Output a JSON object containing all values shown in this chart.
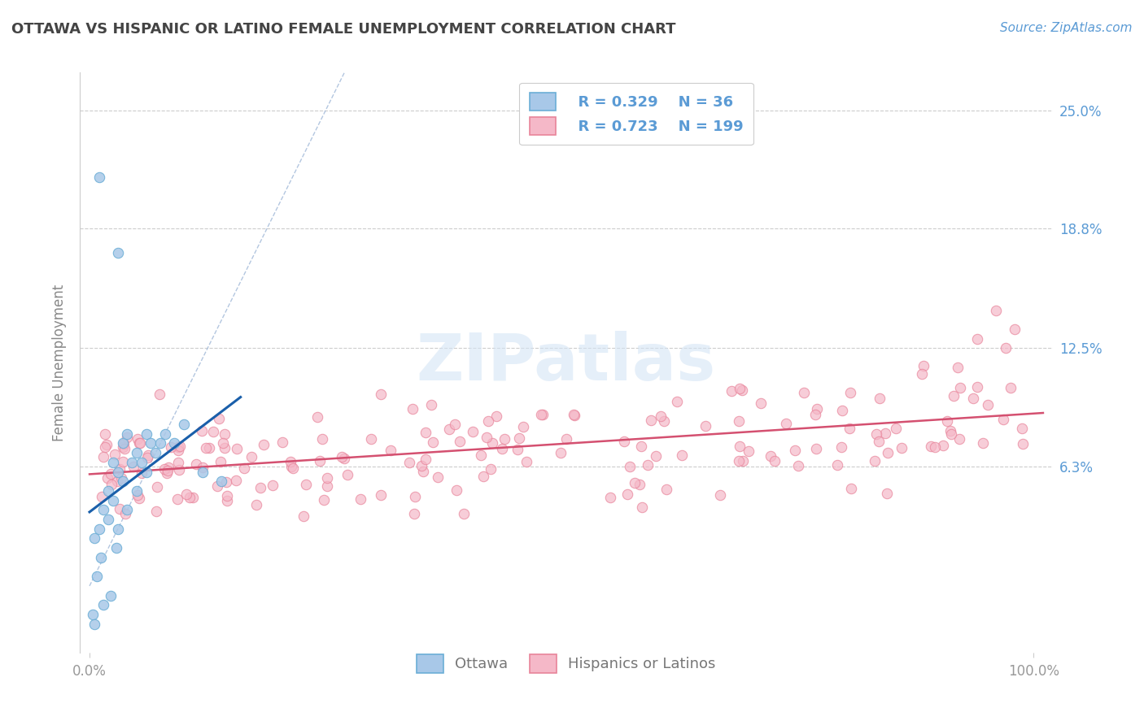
{
  "title": "OTTAWA VS HISPANIC OR LATINO FEMALE UNEMPLOYMENT CORRELATION CHART",
  "source_text": "Source: ZipAtlas.com",
  "ylabel": "Female Unemployment",
  "y_tick_values": [
    6.3,
    12.5,
    18.8,
    25.0
  ],
  "xlim": [
    -1,
    102
  ],
  "ylim": [
    -3.5,
    27
  ],
  "ottawa_R": 0.329,
  "ottawa_N": 36,
  "hispanic_R": 0.723,
  "hispanic_N": 199,
  "ottawa_scatter_face": "#a8c8e8",
  "ottawa_scatter_edge": "#6baed6",
  "hispanic_scatter_face": "#f5b8c8",
  "hispanic_scatter_edge": "#e8849a",
  "trendline_ottawa_color": "#1a5faa",
  "trendline_hispanic_color": "#d45070",
  "diag_color": "#a0b8d8",
  "background_color": "#ffffff",
  "grid_color": "#cccccc",
  "title_color": "#444444",
  "axis_label_color": "#5b9bd5",
  "legend_text_color": "#5b9bd5",
  "watermark_color": "#d5e5f5",
  "ylabel_color": "#888888"
}
